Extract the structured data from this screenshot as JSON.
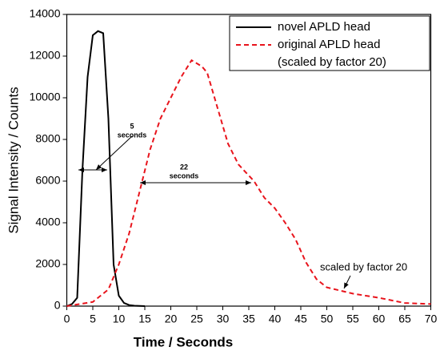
{
  "chart_data": {
    "type": "line",
    "xlabel": "Time / Seconds",
    "ylabel": "Signal Intensity / Counts",
    "xlim": [
      0,
      70
    ],
    "xticks": [
      0,
      5,
      10,
      15,
      20,
      25,
      30,
      35,
      40,
      45,
      50,
      55,
      60,
      65,
      70
    ],
    "ylim": [
      0,
      14000
    ],
    "yticks": [
      0,
      2000,
      4000,
      6000,
      8000,
      10000,
      12000,
      14000
    ],
    "legend": "upper right",
    "series": [
      {
        "name": "novel APLD head",
        "color": "#000000",
        "dash": false,
        "x": [
          0,
          1,
          2,
          3,
          4,
          5,
          6,
          7,
          8,
          9,
          10,
          11,
          12,
          13,
          14,
          15
        ],
        "values": [
          0,
          100,
          400,
          6500,
          11000,
          13000,
          13200,
          13100,
          9000,
          2000,
          500,
          150,
          50,
          20,
          10,
          0
        ]
      },
      {
        "name": "original APLD head",
        "legend_note": "(scaled by factor 20)",
        "color": "#e8141c",
        "dash": true,
        "x": [
          0,
          5,
          8,
          10,
          12,
          14,
          16,
          18,
          20,
          22,
          24,
          26,
          27,
          29,
          31,
          33,
          36,
          38,
          40,
          42,
          44,
          46,
          48,
          50,
          55,
          60,
          65,
          70
        ],
        "values": [
          0,
          200,
          800,
          2000,
          3500,
          5500,
          7500,
          9000,
          10000,
          11000,
          11800,
          11500,
          11200,
          9500,
          7800,
          6800,
          6000,
          5200,
          4700,
          4000,
          3200,
          2100,
          1300,
          900,
          600,
          400,
          150,
          100
        ]
      }
    ],
    "annotations": [
      {
        "lines": [
          "5",
          "seconds"
        ]
      },
      {
        "lines": [
          "22",
          "seconds"
        ]
      },
      {
        "lines": [
          "scaled by factor 20"
        ]
      }
    ]
  }
}
